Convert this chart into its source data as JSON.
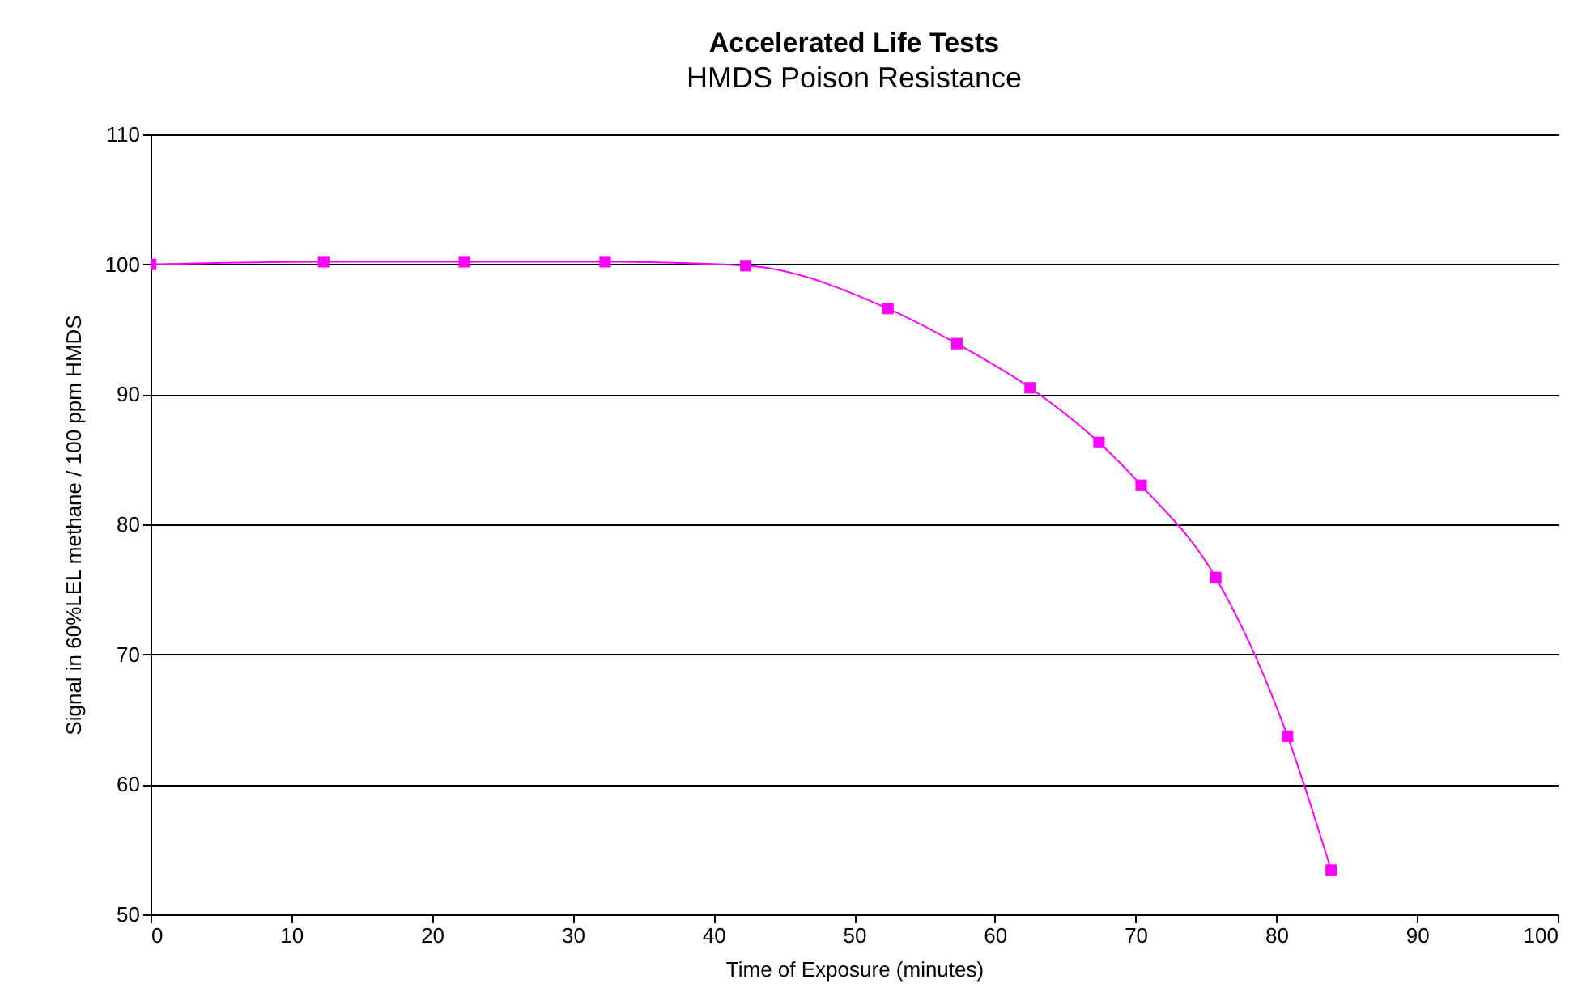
{
  "chart_data": {
    "type": "line",
    "title": "Accelerated Life Tests",
    "subtitle": "HMDS Poison Resistance",
    "xlabel": "Time of Exposure (minutes)",
    "ylabel": "Signal in 60%LEL methane / 100 ppm HMDS",
    "x": [
      0,
      12.3,
      22.3,
      32.3,
      42.3,
      52.4,
      57.3,
      62.5,
      67.4,
      70.4,
      75.7,
      80.8,
      83.9
    ],
    "series": [
      {
        "color": "#ff00ff",
        "values": [
          100,
          100.2,
          100.2,
          100.2,
          99.9,
          96.6,
          93.9,
          90.5,
          86.3,
          83.0,
          75.9,
          63.7,
          53.4
        ]
      }
    ],
    "xlim": [
      0,
      100
    ],
    "xticks": [
      0,
      10,
      20,
      30,
      40,
      50,
      60,
      70,
      80,
      90,
      100
    ],
    "ylim": [
      50,
      110
    ],
    "yticks": [
      50,
      60,
      70,
      80,
      90,
      100,
      110
    ],
    "grid": "y",
    "marker": "square",
    "line_style": "solid"
  }
}
